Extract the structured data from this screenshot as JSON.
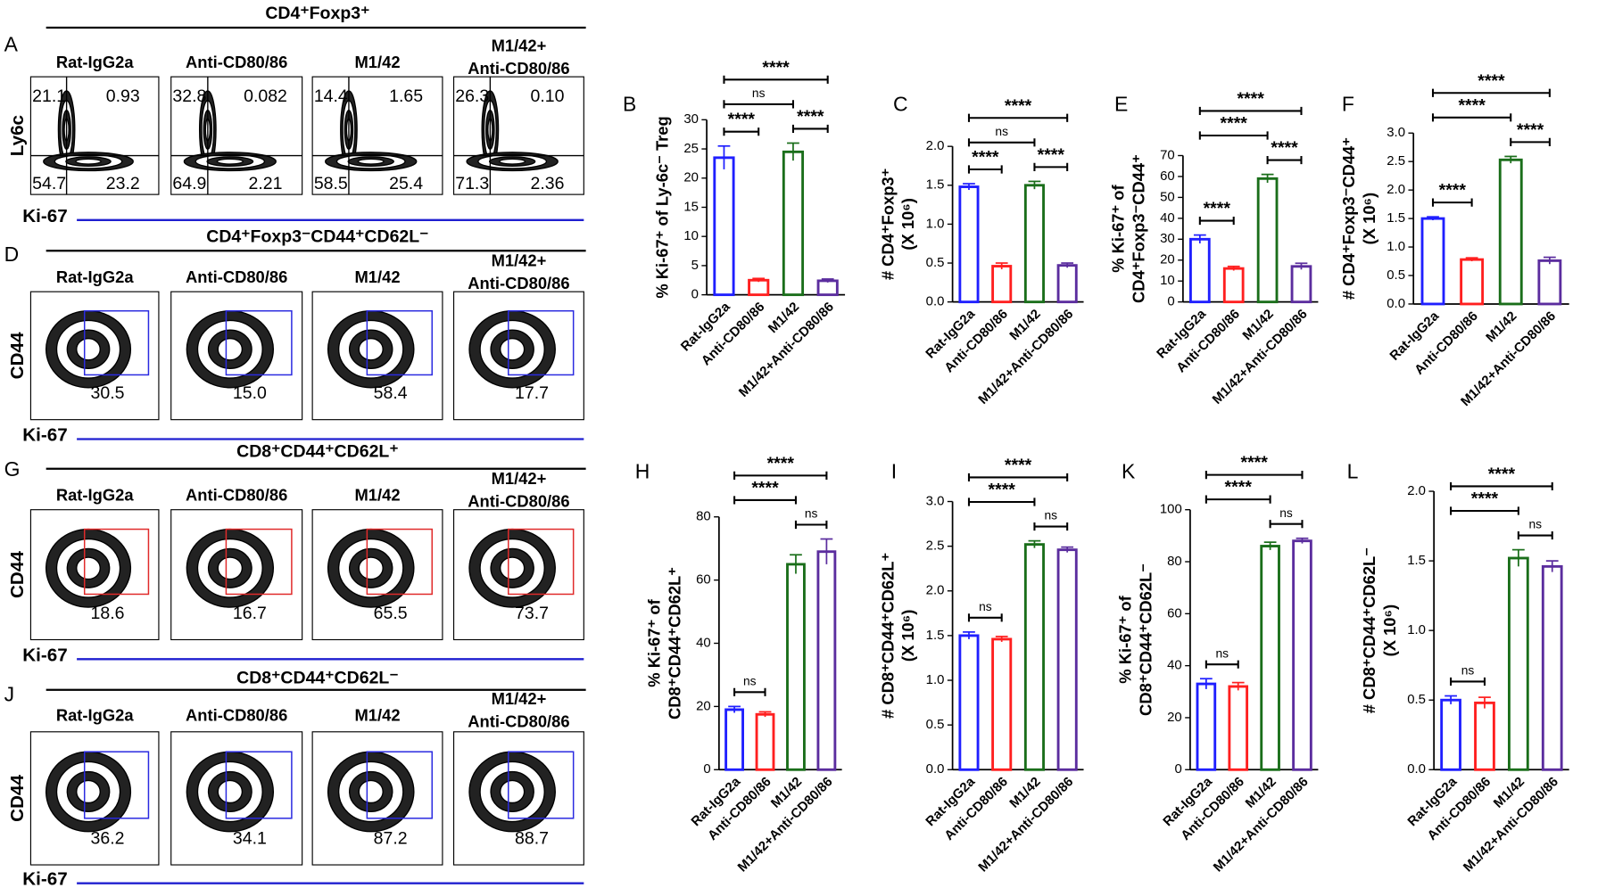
{
  "flow_panels": [
    {
      "letter": "A",
      "title": "CD4⁺Foxp3⁺",
      "y_label": "Ly6c",
      "x_label": "Ki-67",
      "kind": "quadrant",
      "gate_color": "#000000",
      "groups": [
        {
          "label": [
            "Rat-IgG2a"
          ],
          "gates": [
            "21.1",
            "0.93",
            "54.7",
            "23.2"
          ]
        },
        {
          "label": [
            "Anti-CD80/86"
          ],
          "gates": [
            "32.8",
            "0.082",
            "64.9",
            "2.21"
          ]
        },
        {
          "label": [
            "M1/42"
          ],
          "gates": [
            "14.4",
            "1.65",
            "58.5",
            "25.4"
          ]
        },
        {
          "label": [
            "M1/42+",
            "Anti-CD80/86"
          ],
          "gates": [
            "26.3",
            "0.10",
            "71.3",
            "2.36"
          ]
        }
      ]
    },
    {
      "letter": "D",
      "title": "CD4⁺Foxp3⁻CD44⁺CD62L⁻",
      "y_label": "CD44",
      "x_label": "Ki-67",
      "kind": "gate",
      "gate_color": "#2a2ae0",
      "groups": [
        {
          "label": [
            "Rat-IgG2a"
          ],
          "gates": [
            "30.5"
          ]
        },
        {
          "label": [
            "Anti-CD80/86"
          ],
          "gates": [
            "15.0"
          ]
        },
        {
          "label": [
            "M1/42"
          ],
          "gates": [
            "58.4"
          ]
        },
        {
          "label": [
            "M1/42+",
            "Anti-CD80/86"
          ],
          "gates": [
            "17.7"
          ]
        }
      ]
    },
    {
      "letter": "G",
      "title": "CD8⁺CD44⁺CD62L⁺",
      "y_label": "CD44",
      "x_label": "Ki-67",
      "kind": "gate",
      "gate_color": "#e02a2a",
      "groups": [
        {
          "label": [
            "Rat-IgG2a"
          ],
          "gates": [
            "18.6"
          ]
        },
        {
          "label": [
            "Anti-CD80/86"
          ],
          "gates": [
            "16.7"
          ]
        },
        {
          "label": [
            "M1/42"
          ],
          "gates": [
            "65.5"
          ]
        },
        {
          "label": [
            "M1/42+",
            "Anti-CD80/86"
          ],
          "gates": [
            "73.7"
          ]
        }
      ]
    },
    {
      "letter": "J",
      "title": "CD8⁺CD44⁺CD62L⁻",
      "y_label": "CD44",
      "x_label": "Ki-67",
      "kind": "gate",
      "gate_color": "#2a2ae0",
      "groups": [
        {
          "label": [
            "Rat-IgG2a"
          ],
          "gates": [
            "36.2"
          ]
        },
        {
          "label": [
            "Anti-CD80/86"
          ],
          "gates": [
            "34.1"
          ]
        },
        {
          "label": [
            "M1/42"
          ],
          "gates": [
            "87.2"
          ]
        },
        {
          "label": [
            "M1/42+",
            "Anti-CD80/86"
          ],
          "gates": [
            "88.7"
          ]
        }
      ]
    }
  ],
  "chart_data": [
    {
      "type": "bar",
      "label": "B",
      "y_label": [
        "% Ki-67⁺ of Ly-6c⁻ Treg"
      ],
      "categories": [
        "Rat-IgG2a",
        "Anti-CD80/86",
        "M1/42",
        "M1/42+Anti-CD80/86"
      ],
      "colors": [
        "#1f1fff",
        "#ff1f1f",
        "#1a6e1a",
        "#5b2d9e"
      ],
      "values": [
        23.5,
        2.5,
        24.5,
        2.4
      ],
      "errors": [
        2,
        0.3,
        1.5,
        0.3
      ],
      "ylim": [
        0,
        30
      ],
      "yticks": [
        0,
        5,
        10,
        15,
        20,
        25,
        30
      ],
      "comparisons": [
        {
          "groups": [
            0,
            1
          ],
          "label": "****"
        },
        {
          "groups": [
            2,
            3
          ],
          "label": "****"
        },
        {
          "groups": [
            0,
            2
          ],
          "label": "ns"
        },
        {
          "groups": [
            0,
            3
          ],
          "label": "****"
        }
      ]
    },
    {
      "type": "bar",
      "label": "C",
      "y_label": [
        "# CD4⁺Foxp3⁺",
        "(X 10⁶)"
      ],
      "categories": [
        "Rat-IgG2a",
        "Anti-CD80/86",
        "M1/42",
        "M1/42+Anti-CD80/86"
      ],
      "colors": [
        "#1f1fff",
        "#ff1f1f",
        "#1a6e1a",
        "#5b2d9e"
      ],
      "values": [
        1.48,
        0.46,
        1.5,
        0.47
      ],
      "errors": [
        0.04,
        0.04,
        0.05,
        0.03
      ],
      "ylim": [
        0,
        2.0
      ],
      "yticks": [
        {
          "value": 0,
          "label": "0.0"
        },
        0.5,
        {
          "value": 1,
          "label": "1.0"
        },
        1.5,
        {
          "value": 2,
          "label": "2.0"
        }
      ],
      "comparisons": [
        {
          "groups": [
            0,
            1
          ],
          "label": "****"
        },
        {
          "groups": [
            2,
            3
          ],
          "label": "****"
        },
        {
          "groups": [
            0,
            2
          ],
          "label": "ns"
        },
        {
          "groups": [
            0,
            3
          ],
          "label": "****"
        }
      ]
    },
    {
      "type": "bar",
      "label": "E",
      "y_label": [
        "% Ki-67⁺ of",
        "CD4⁺Foxp3⁻CD44⁺"
      ],
      "categories": [
        "Rat-IgG2a",
        "Anti-CD80/86",
        "M1/42",
        "M1/42+Anti-CD80/86"
      ],
      "colors": [
        "#1f1fff",
        "#ff1f1f",
        "#1a6e1a",
        "#5b2d9e"
      ],
      "values": [
        30,
        16,
        59,
        17
      ],
      "errors": [
        2,
        1,
        2,
        1.5
      ],
      "ylim": [
        0,
        70
      ],
      "yticks": [
        0,
        10,
        20,
        30,
        40,
        50,
        60,
        70
      ],
      "comparisons": [
        {
          "groups": [
            0,
            1
          ],
          "label": "****"
        },
        {
          "groups": [
            2,
            3
          ],
          "label": "****"
        },
        {
          "groups": [
            0,
            2
          ],
          "label": "****"
        },
        {
          "groups": [
            0,
            3
          ],
          "label": "****"
        }
      ]
    },
    {
      "type": "bar",
      "label": "F",
      "y_label": [
        "# CD4⁺Foxp3⁻CD44⁺",
        "(X 10⁶)"
      ],
      "categories": [
        "Rat-IgG2a",
        "Anti-CD80/86",
        "M1/42",
        "M1/42+Anti-CD80/86"
      ],
      "colors": [
        "#1f1fff",
        "#ff1f1f",
        "#1a6e1a",
        "#5b2d9e"
      ],
      "values": [
        1.5,
        0.78,
        2.53,
        0.76
      ],
      "errors": [
        0.03,
        0.03,
        0.06,
        0.06
      ],
      "ylim": [
        0,
        3.0
      ],
      "yticks": [
        {
          "value": 0,
          "label": "0.0"
        },
        0.5,
        {
          "value": 1,
          "label": "1.0"
        },
        1.5,
        {
          "value": 2,
          "label": "2.0"
        },
        2.5,
        {
          "value": 3,
          "label": "3.0"
        }
      ],
      "comparisons": [
        {
          "groups": [
            0,
            1
          ],
          "label": "****"
        },
        {
          "groups": [
            2,
            3
          ],
          "label": "****"
        },
        {
          "groups": [
            0,
            2
          ],
          "label": "****"
        },
        {
          "groups": [
            0,
            3
          ],
          "label": "****"
        }
      ]
    },
    {
      "type": "bar",
      "label": "H",
      "y_label": [
        "% Ki-67⁺ of",
        "CD8⁺CD44⁺CD62L⁺"
      ],
      "categories": [
        "Rat-IgG2a",
        "Anti-CD80/86",
        "M1/42",
        "M1/42+Anti-CD80/86"
      ],
      "colors": [
        "#1f1fff",
        "#ff1f1f",
        "#1a6e1a",
        "#5b2d9e"
      ],
      "values": [
        19,
        17.5,
        65,
        69
      ],
      "errors": [
        1,
        0.8,
        3,
        4
      ],
      "ylim": [
        0,
        80
      ],
      "yticks": [
        0,
        20,
        40,
        60,
        80
      ],
      "comparisons": [
        {
          "groups": [
            0,
            1
          ],
          "label": "ns"
        },
        {
          "groups": [
            2,
            3
          ],
          "label": "ns"
        },
        {
          "groups": [
            0,
            2
          ],
          "label": "****"
        },
        {
          "groups": [
            0,
            3
          ],
          "label": "****"
        }
      ]
    },
    {
      "type": "bar",
      "label": "I",
      "y_label": [
        "# CD8⁺CD44⁺CD62L⁺",
        "(X 10⁶)"
      ],
      "categories": [
        "Rat-IgG2a",
        "Anti-CD80/86",
        "M1/42",
        "M1/42+Anti-CD80/86"
      ],
      "colors": [
        "#1f1fff",
        "#ff1f1f",
        "#1a6e1a",
        "#5b2d9e"
      ],
      "values": [
        1.5,
        1.46,
        2.52,
        2.46
      ],
      "errors": [
        0.04,
        0.03,
        0.04,
        0.03
      ],
      "ylim": [
        0,
        3.0
      ],
      "yticks": [
        {
          "value": 0,
          "label": "0.0"
        },
        0.5,
        {
          "value": 1,
          "label": "1.0"
        },
        1.5,
        {
          "value": 2,
          "label": "2.0"
        },
        2.5,
        {
          "value": 3,
          "label": "3.0"
        }
      ],
      "comparisons": [
        {
          "groups": [
            0,
            1
          ],
          "label": "ns"
        },
        {
          "groups": [
            2,
            3
          ],
          "label": "ns"
        },
        {
          "groups": [
            0,
            2
          ],
          "label": "****"
        },
        {
          "groups": [
            0,
            3
          ],
          "label": "****"
        }
      ]
    },
    {
      "type": "bar",
      "label": "K",
      "y_label": [
        "% Ki-67⁺ of",
        "CD8⁺CD44⁺CD62L⁻"
      ],
      "categories": [
        "Rat-IgG2a",
        "Anti-CD80/86",
        "M1/42",
        "M1/42+Anti-CD80/86"
      ],
      "colors": [
        "#1f1fff",
        "#ff1f1f",
        "#1a6e1a",
        "#5b2d9e"
      ],
      "values": [
        33,
        32,
        86,
        88
      ],
      "errors": [
        2,
        1.5,
        1.5,
        1
      ],
      "ylim": [
        0,
        100
      ],
      "yticks": [
        0,
        20,
        40,
        60,
        80,
        100
      ],
      "comparisons": [
        {
          "groups": [
            0,
            1
          ],
          "label": "ns"
        },
        {
          "groups": [
            2,
            3
          ],
          "label": "ns"
        },
        {
          "groups": [
            0,
            2
          ],
          "label": "****"
        },
        {
          "groups": [
            0,
            3
          ],
          "label": "****"
        }
      ]
    },
    {
      "type": "bar",
      "label": "L",
      "y_label": [
        "# CD8⁺CD44⁺CD62L⁻",
        "(X 10⁶)"
      ],
      "categories": [
        "Rat-IgG2a",
        "Anti-CD80/86",
        "M1/42",
        "M1/42+Anti-CD80/86"
      ],
      "colors": [
        "#1f1fff",
        "#ff1f1f",
        "#1a6e1a",
        "#5b2d9e"
      ],
      "values": [
        0.5,
        0.48,
        1.52,
        1.46
      ],
      "errors": [
        0.03,
        0.04,
        0.06,
        0.04
      ],
      "ylim": [
        0,
        2.0
      ],
      "yticks": [
        {
          "value": 0,
          "label": "0.0"
        },
        0.5,
        {
          "value": 1,
          "label": "1.0"
        },
        1.5,
        {
          "value": 2,
          "label": "2.0"
        }
      ],
      "comparisons": [
        {
          "groups": [
            0,
            1
          ],
          "label": "ns"
        },
        {
          "groups": [
            2,
            3
          ],
          "label": "ns"
        },
        {
          "groups": [
            0,
            2
          ],
          "label": "****"
        },
        {
          "groups": [
            0,
            3
          ],
          "label": "****"
        }
      ]
    }
  ]
}
